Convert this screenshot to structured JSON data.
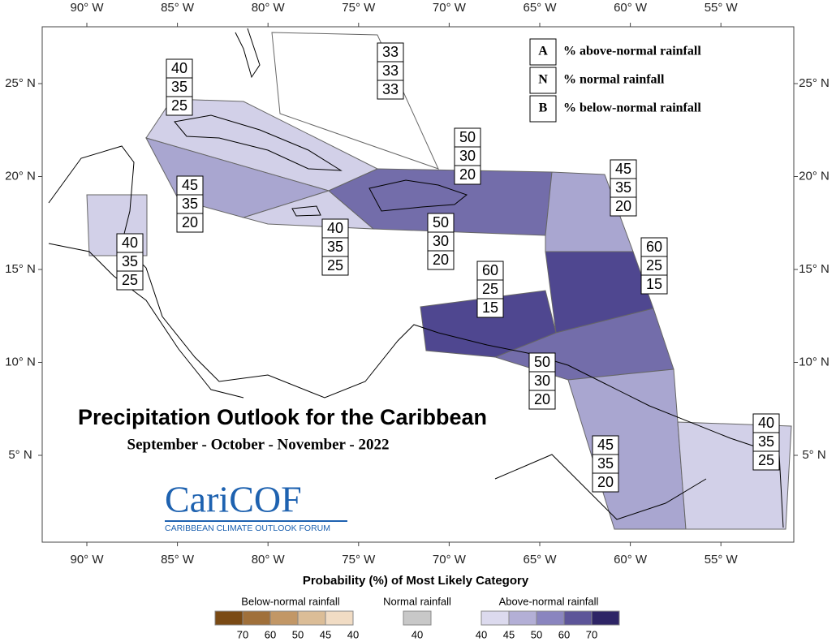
{
  "map": {
    "title": "Precipitation Outlook for the Caribbean",
    "subtitle": "September - October - November - 2022",
    "logo": {
      "name": "CariCOF",
      "tagline": "CARIBBEAN CLIMATE OUTLOOK FORUM"
    },
    "lon_labels": [
      "90° W",
      "85° W",
      "80° W",
      "75° W",
      "70° W",
      "65° W",
      "60° W",
      "55° W"
    ],
    "lat_labels": [
      "25° N",
      "20° N",
      "15° N",
      "10° N",
      "5° N"
    ],
    "key": [
      {
        "letter": "A",
        "text": "% above-normal rainfall"
      },
      {
        "letter": "N",
        "text": "% normal rainfall"
      },
      {
        "letter": "B",
        "text": "% below-normal rainfall"
      }
    ],
    "regions": [
      {
        "above": 40,
        "normal": 35,
        "below": 25
      },
      {
        "above": 33,
        "normal": 33,
        "below": 33
      },
      {
        "above": 45,
        "normal": 35,
        "below": 20
      },
      {
        "above": 40,
        "normal": 35,
        "below": 25
      },
      {
        "above": 50,
        "normal": 30,
        "below": 20
      },
      {
        "above": 50,
        "normal": 30,
        "below": 20
      },
      {
        "above": 45,
        "normal": 35,
        "below": 20
      },
      {
        "above": 40,
        "normal": 35,
        "below": 25
      },
      {
        "above": 60,
        "normal": 25,
        "below": 15
      },
      {
        "above": 60,
        "normal": 25,
        "below": 15
      },
      {
        "above": 50,
        "normal": 30,
        "below": 20
      },
      {
        "above": 45,
        "normal": 35,
        "below": 20
      },
      {
        "above": 40,
        "normal": 35,
        "below": 25
      }
    ],
    "legend": {
      "title": "Probability (%) of Most Likely Category",
      "groups": [
        {
          "title": "Below-normal rainfall",
          "labels": [
            70,
            60,
            50,
            45,
            40
          ]
        },
        {
          "title": "Normal rainfall",
          "labels": [
            40
          ]
        },
        {
          "title": "Above-normal rainfall",
          "labels": [
            40,
            45,
            50,
            60,
            70
          ]
        }
      ]
    }
  }
}
